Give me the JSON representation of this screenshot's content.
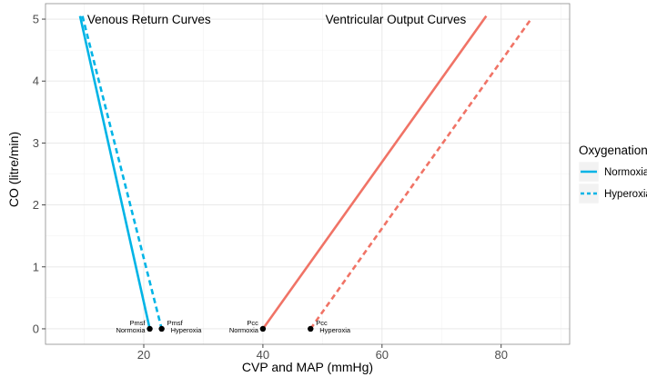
{
  "chart_data": {
    "type": "line",
    "xlabel": "CVP and MAP (mmHg)",
    "ylabel": "CO (litre/min)",
    "xlim": [
      3.5,
      91.5
    ],
    "ylim": [
      -0.25,
      5.25
    ],
    "x_ticks": [
      20,
      40,
      60,
      80
    ],
    "y_ticks": [
      0,
      1,
      2,
      3,
      4,
      5
    ],
    "grid": true,
    "legend": {
      "title": "Oxygenation",
      "placement": "right",
      "entries": [
        {
          "label": "Normoxia",
          "style": "solid",
          "color": "#00b4e6"
        },
        {
          "label": "Hyperoxia",
          "style": "dashed",
          "color": "#00b4e6"
        }
      ]
    },
    "annotations": [
      {
        "text": "Venous Return Curves",
        "x": 10.5,
        "y": 5.0
      },
      {
        "text": "Ventricular Output Curves",
        "x": 50.5,
        "y": 5.0
      }
    ],
    "series": [
      {
        "group": "Venous Return",
        "oxygenation": "Normoxia",
        "style": "solid",
        "color": "#00b4e6",
        "points": [
          {
            "x": 9.3,
            "y": 5.05
          },
          {
            "x": 21.0,
            "y": 0
          }
        ]
      },
      {
        "group": "Venous Return",
        "oxygenation": "Hyperoxia",
        "style": "dashed",
        "color": "#00b4e6",
        "points": [
          {
            "x": 9.7,
            "y": 5.05
          },
          {
            "x": 23.0,
            "y": 0
          }
        ]
      },
      {
        "group": "Ventricular Output",
        "oxygenation": "Normoxia",
        "style": "solid",
        "color": "#f07366",
        "points": [
          {
            "x": 40.0,
            "y": 0
          },
          {
            "x": 77.5,
            "y": 5.05
          }
        ]
      },
      {
        "group": "Ventricular Output",
        "oxygenation": "Hyperoxia",
        "style": "dashed",
        "color": "#f07366",
        "points": [
          {
            "x": 48.0,
            "y": 0
          },
          {
            "x": 85.0,
            "y": 5.0
          }
        ]
      }
    ],
    "markers": [
      {
        "x": 21.0,
        "y": 0,
        "label_top": "Pmsf",
        "label_bottom": "Normoxia",
        "side": "left"
      },
      {
        "x": 23.0,
        "y": 0,
        "label_top": "Pmsf",
        "label_bottom": "Hyperoxia",
        "side": "right"
      },
      {
        "x": 40.0,
        "y": 0,
        "label_top": "Pcc",
        "label_bottom": "Normoxia",
        "side": "left"
      },
      {
        "x": 48.0,
        "y": 0,
        "label_top": "Pcc",
        "label_bottom": "Hyperoxia",
        "side": "right"
      }
    ]
  }
}
